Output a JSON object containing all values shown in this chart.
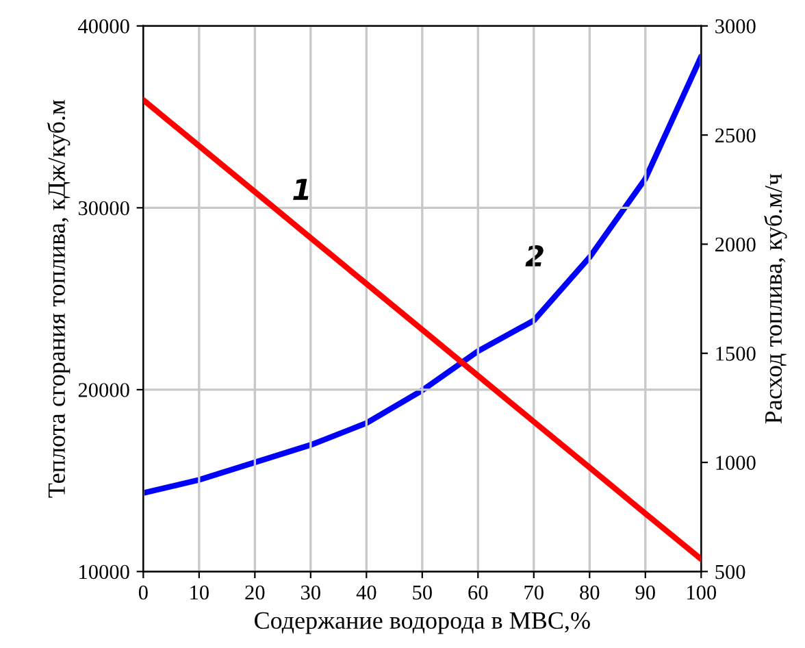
{
  "chart_data": {
    "type": "line",
    "xlabel": "Содержание водорода в МВС,%",
    "ylabel": "Теплота сгорания топлива, кДж/куб.м",
    "y2label": "Расход топлива, куб.м/ч",
    "x": [
      0,
      10,
      20,
      30,
      40,
      50,
      60,
      70,
      80,
      90,
      100
    ],
    "series": [
      {
        "color": "#ff0000",
        "values": [
          35930,
          33400,
          30880,
          28350,
          25820,
          23300,
          20770,
          18240,
          15720,
          13190,
          10680
        ]
      },
      {
        "color": "#0000ff",
        "axis": "y2",
        "values": [
          860,
          920,
          1000,
          1080,
          1180,
          1330,
          1510,
          1650,
          1940,
          2300,
          2860
        ]
      }
    ],
    "xlim": [
      0,
      100
    ],
    "xticks": [
      0,
      10,
      20,
      30,
      40,
      50,
      60,
      70,
      80,
      90,
      100
    ],
    "ylim": [
      10000,
      40000
    ],
    "yticks": [
      10000,
      20000,
      30000,
      40000
    ],
    "y2lim": [
      500,
      3000
    ],
    "y2ticks": [
      500,
      1000,
      1500,
      2000,
      2500,
      3000
    ],
    "grid": true,
    "marker": "none",
    "line_style": "solid",
    "annotations": [
      "1",
      "2"
    ]
  }
}
